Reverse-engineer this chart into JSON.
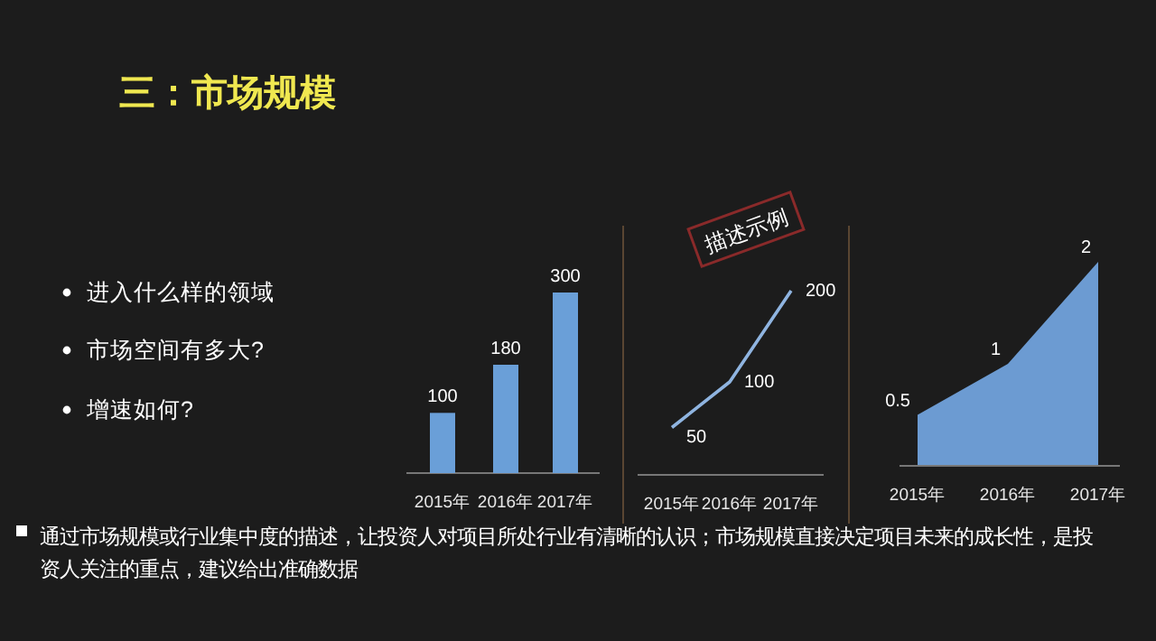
{
  "chart_data": [
    {
      "type": "other",
      "title": "三：市场规模",
      "annotations": [
        "进入什么样的领域",
        "市场空间有多大?",
        "增速如何?",
        "通过市场规模或行业集中度的描述，让投资人对项目所处行业有清晰的认识；市场规模直接决定项目未来的成长性，是投资人关注的重点，建议给出准确数据",
        "描述示例"
      ]
    },
    {
      "type": "bar",
      "categories": [
        "2015年",
        "2016年",
        "2017年"
      ],
      "values": [
        100,
        180,
        300
      ],
      "color": "#6a9fd8",
      "data_labels": true
    },
    {
      "type": "line",
      "categories": [
        "2015年",
        "2016年",
        "2017年"
      ],
      "values": [
        50,
        100,
        200
      ],
      "color": "#8fb4e0",
      "data_labels": true
    },
    {
      "type": "area",
      "categories": [
        "2015年",
        "2016年",
        "2017年"
      ],
      "values": [
        0.5,
        1,
        2
      ],
      "color": "#6c9bd2",
      "data_labels": true
    }
  ]
}
